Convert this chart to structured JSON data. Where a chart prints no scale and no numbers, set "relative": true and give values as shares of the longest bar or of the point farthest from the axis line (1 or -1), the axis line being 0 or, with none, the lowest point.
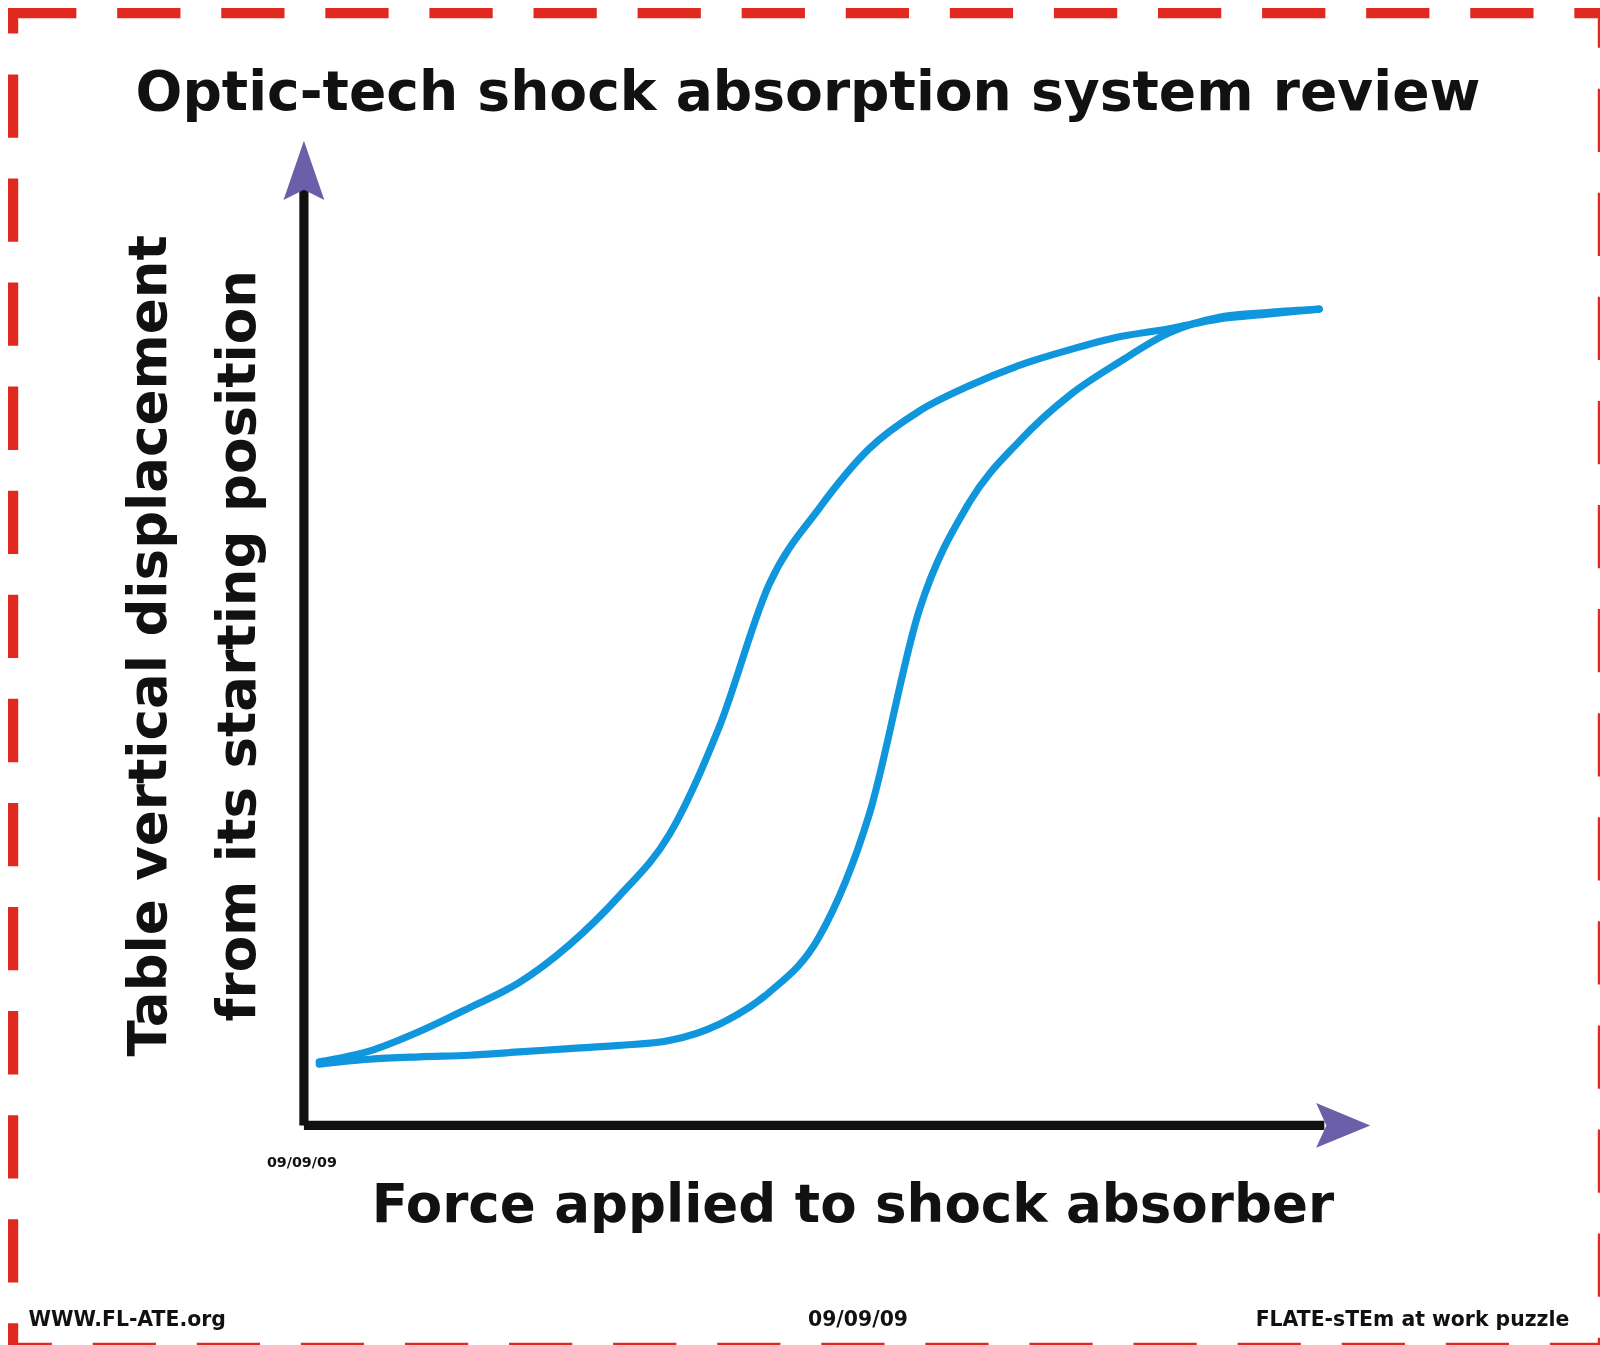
{
  "chart_data": {
    "type": "line",
    "title": "Optic-tech shock absorption system review",
    "xlabel": "Force applied to shock absorber",
    "ylabel": "Table vertical displacement\nfrom its starting position",
    "relative": true,
    "categories": [
      null,
      null,
      null,
      null,
      null,
      null,
      null,
      null,
      null,
      null,
      null,
      null,
      null,
      null,
      null,
      null,
      null,
      null,
      null,
      null,
      null
    ],
    "series": [
      {
        "color": "#0f96dc",
        "values": [
          0.078,
          0.091,
          0.115,
          0.144,
          0.175,
          0.221,
          0.281,
          0.356,
          0.488,
          0.663,
          0.756,
          0.829,
          0.875,
          0.906,
          0.931,
          0.95,
          0.966,
          0.976,
          0.988,
          0.994,
          1
        ]
      },
      {
        "color": "#0f96dc",
        "values": [
          0.075,
          0.081,
          0.084,
          0.086,
          0.09,
          0.094,
          0.098,
          0.104,
          0.124,
          0.163,
          0.231,
          0.381,
          0.631,
          0.763,
          0.838,
          0.894,
          0.935,
          0.971,
          0.99,
          0.996,
          1
        ]
      }
    ],
    "annotations": [
      "09/09/09",
      "WWW.FL-ATE.org",
      "09/09/09",
      "FLATE-sTEm at work puzzle"
    ]
  }
}
